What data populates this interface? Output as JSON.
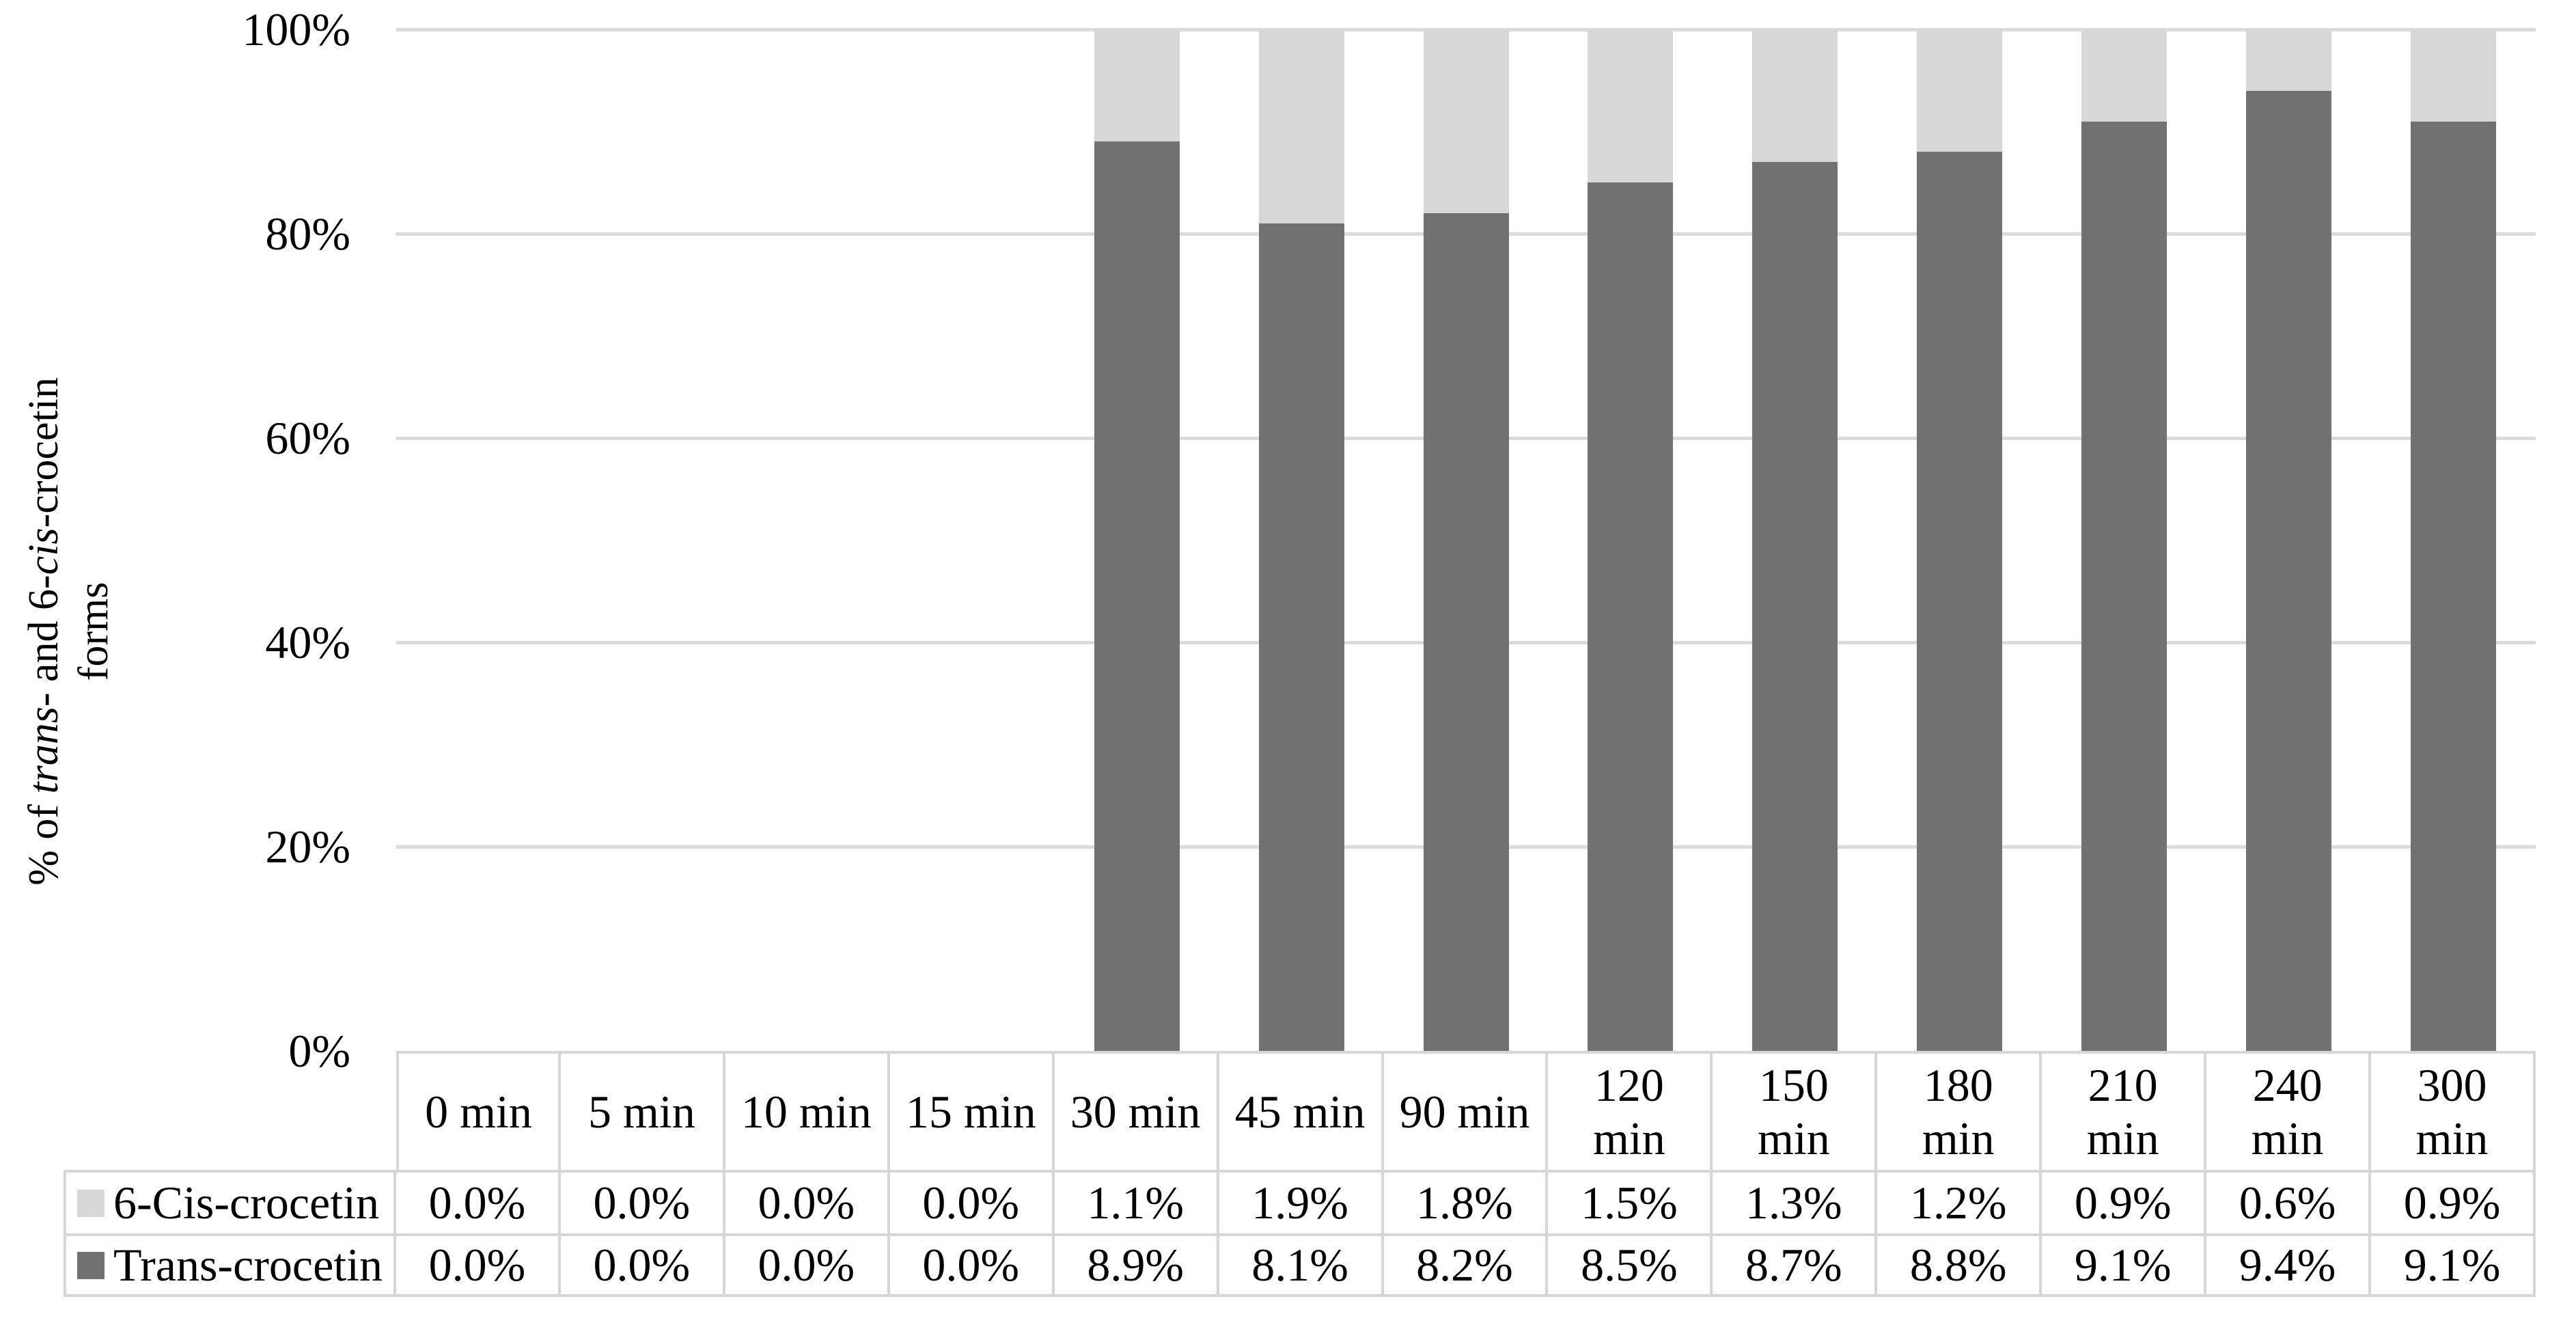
{
  "chart_data": {
    "type": "bar",
    "subtype": "stacked-100-percent",
    "title": "",
    "ylabel": "% of trans- and 6-cis-crocetin forms",
    "ylabel_segments": [
      {
        "t": "% of ",
        "i": false
      },
      {
        "t": "trans",
        "i": true
      },
      {
        "t": "- and 6-",
        "i": false
      },
      {
        "t": "cis",
        "i": true
      },
      {
        "t": "-crocetin\nforms",
        "i": false
      }
    ],
    "categories": [
      "0 min",
      "5 min",
      "10 min",
      "15 min",
      "30 min",
      "45 min",
      "90 min",
      "120 min",
      "150 min",
      "180 min",
      "210 min",
      "240 min",
      "300 min"
    ],
    "category_header_lines": [
      "0 min",
      "5 min",
      "10 min",
      "15 min",
      "30 min",
      "45 min",
      "90 min",
      "120\nmin",
      "150\nmin",
      "180\nmin",
      "210\nmin",
      "240\nmin",
      "300\nmin"
    ],
    "series": [
      {
        "name": "6-Cis-crocetin",
        "color": "#D8D7D7",
        "values": [
          0.0,
          0.0,
          0.0,
          0.0,
          1.1,
          1.9,
          1.8,
          1.5,
          1.3,
          1.2,
          0.9,
          0.6,
          0.9
        ]
      },
      {
        "name": "Trans-crocetin",
        "color": "#737070",
        "values": [
          0.0,
          0.0,
          0.0,
          0.0,
          8.9,
          8.1,
          8.2,
          8.5,
          8.7,
          8.8,
          9.1,
          9.4,
          9.1
        ]
      }
    ],
    "value_format": "one-decimal-percent",
    "yticks": [
      "100%",
      "80%",
      "60%",
      "40%",
      "20%",
      "0%"
    ],
    "ylim": [
      0,
      100
    ],
    "grid": true,
    "gridline_color": "#DBDBDB",
    "table_border_color": "#D7D5D5",
    "bar_stack_note": "bars shown only where series totals are non-zero; dark Trans segment on bottom, light 6-Cis segment on top",
    "legend_position": "table-row-headers"
  }
}
